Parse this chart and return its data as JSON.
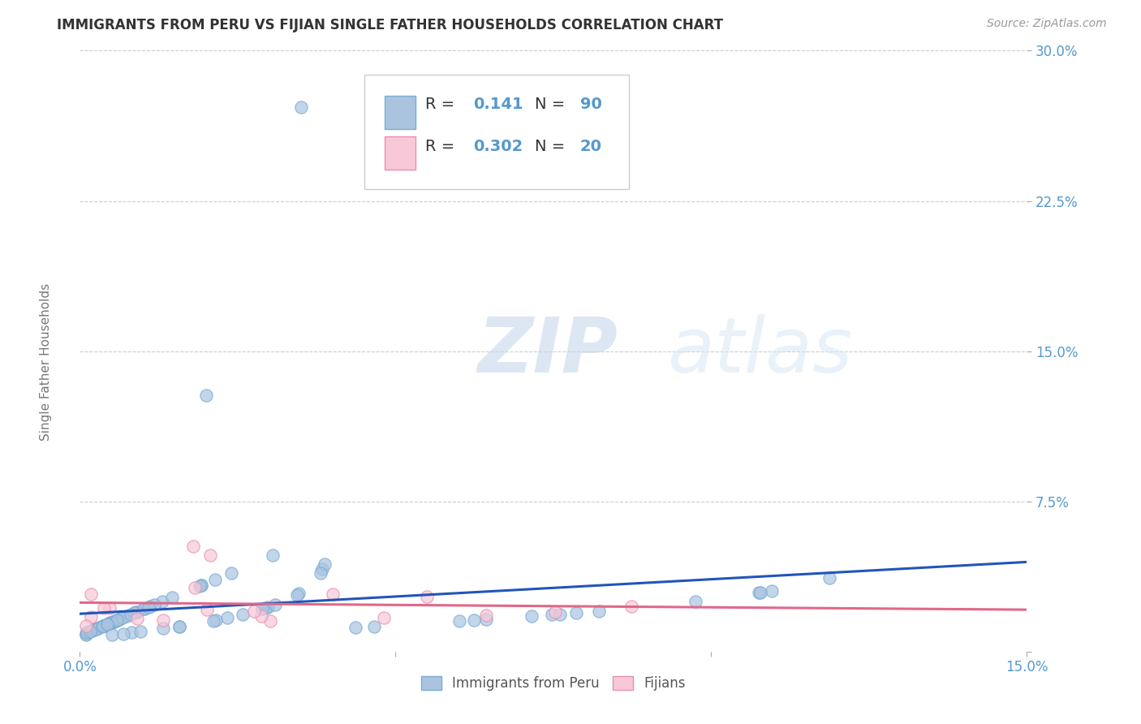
{
  "title": "IMMIGRANTS FROM PERU VS FIJIAN SINGLE FATHER HOUSEHOLDS CORRELATION CHART",
  "source": "Source: ZipAtlas.com",
  "ylabel": "Single Father Households",
  "xlim": [
    0.0,
    0.15
  ],
  "ylim": [
    0.0,
    0.3
  ],
  "xticks": [
    0.0,
    0.05,
    0.1,
    0.15
  ],
  "xticklabels": [
    "0.0%",
    "",
    "",
    "15.0%"
  ],
  "yticks": [
    0.0,
    0.075,
    0.15,
    0.225,
    0.3
  ],
  "yticklabels": [
    "",
    "7.5%",
    "15.0%",
    "22.5%",
    "30.0%"
  ],
  "r_peru": 0.141,
  "n_peru": 90,
  "r_fijian": 0.302,
  "n_fijian": 20,
  "blue_scatter_color": "#aac4e0",
  "blue_edge_color": "#7aadd4",
  "blue_line_color": "#2255bb",
  "pink_scatter_color": "#f8c8d8",
  "pink_edge_color": "#e890b0",
  "pink_line_color": "#e06888",
  "legend_label1": "Immigrants from Peru",
  "legend_label2": "Fijians",
  "watermark_zip": "ZIP",
  "watermark_atlas": "atlas",
  "background_color": "#ffffff",
  "grid_color": "#cccccc",
  "title_color": "#333333",
  "axis_tick_color": "#5599cc",
  "ylabel_color": "#777777"
}
